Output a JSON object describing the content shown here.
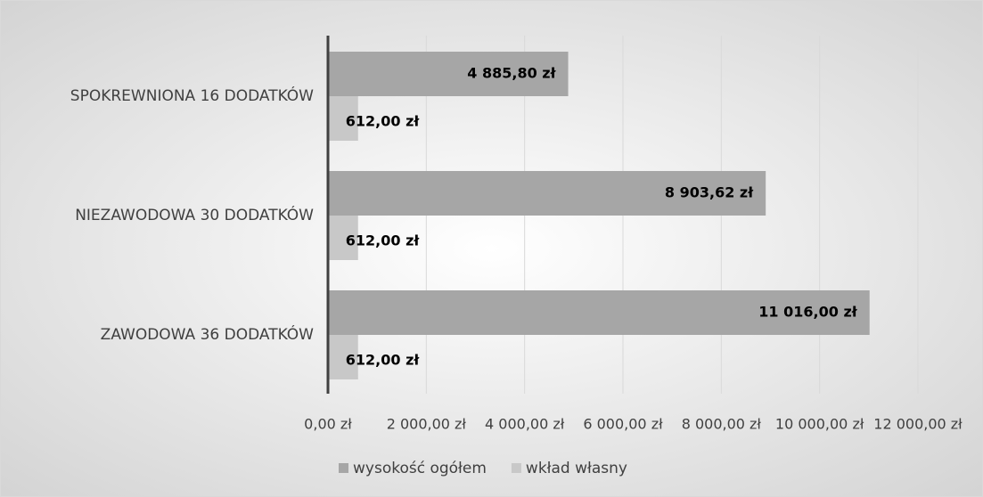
{
  "chart_data": {
    "type": "bar",
    "orientation": "horizontal",
    "categories": [
      "SPOKREWNIONA 16 DODATKÓW",
      "NIEZAWODOWA 30 DODATKÓW",
      "ZAWODOWA 36 DODATKÓW"
    ],
    "series": [
      {
        "name": "wysokość ogółem",
        "color": "#a6a6a6",
        "values": [
          4885.8,
          8903.62,
          11016
        ],
        "value_labels": [
          "4 885,80 zł",
          "8 903,62 zł",
          "11 016,00 zł"
        ]
      },
      {
        "name": "wkład własny",
        "color": "#c8c8c8",
        "values": [
          612,
          612,
          612
        ],
        "value_labels": [
          "612,00 zł",
          "612,00 zł",
          "612,00 zł"
        ]
      }
    ],
    "xlim": [
      0,
      12000
    ],
    "xticks": [
      {
        "value": 0,
        "label": "0,00 zł"
      },
      {
        "value": 2000,
        "label": "2 000,00 zł"
      },
      {
        "value": 4000,
        "label": "4 000,00 zł"
      },
      {
        "value": 6000,
        "label": "6 000,00 zł"
      },
      {
        "value": 8000,
        "label": "8 000,00 zł"
      },
      {
        "value": 10000,
        "label": "10 000,00 zł"
      },
      {
        "value": 12000,
        "label": "12 000,00 zł"
      }
    ],
    "grid": true,
    "legend": "bottom"
  }
}
